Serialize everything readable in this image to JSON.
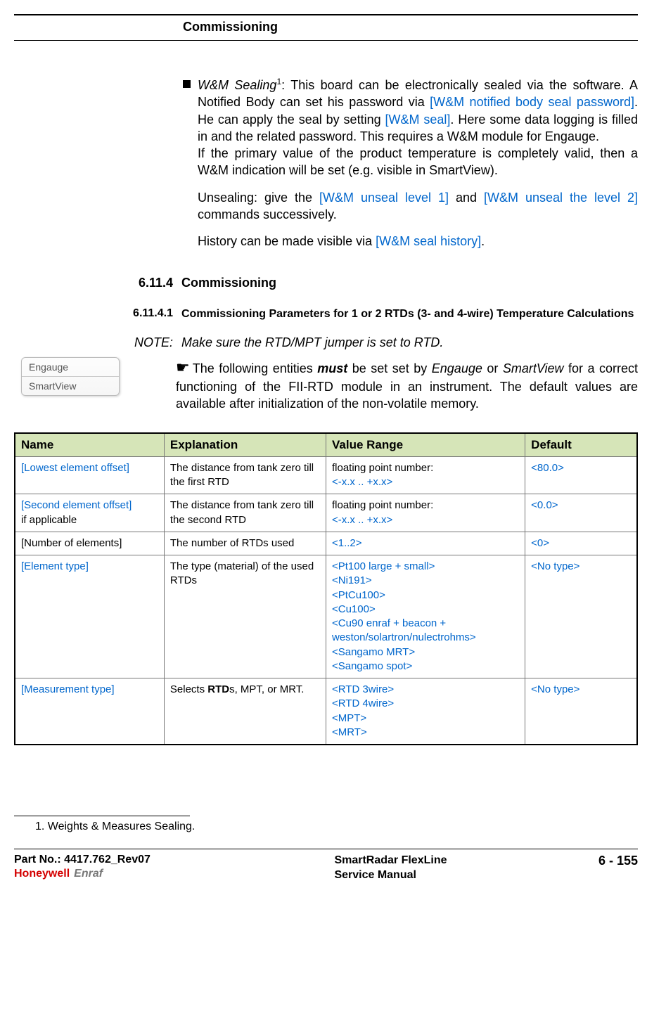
{
  "header": {
    "title": "Commissioning"
  },
  "bullet": {
    "lead_italic": "W&M Sealing",
    "sup": "1",
    "text1": ": This board can be electronically sealed via the software. A Notified Body can set his password via ",
    "link1": "[W&M notified body seal password]",
    "text2": ". He can apply the seal by setting ",
    "link2": "[W&M seal]",
    "text3": ". Here some data logging is filled in and the related password. This requires a W&M module for Engauge.",
    "para2": "If the primary value of the product temperature is completely valid, then a W&M indication will be set (e.g. visible in SmartView).",
    "para3a": "Unsealing: give the ",
    "link3": "[W&M unseal level 1]",
    "para3b": " and ",
    "link4": "[W&M unseal the level 2]",
    "para3c": " commands successively.",
    "para4a": "History can be made visible via ",
    "link5": "[W&M seal history]",
    "para4b": "."
  },
  "section": {
    "num": "6.11.4",
    "title": "Commissioning"
  },
  "subsection": {
    "num": "6.11.4.1",
    "title": "Commissioning Parameters for 1 or 2 RTDs (3- and 4-wire) Temperature Calculations"
  },
  "note": {
    "label": "NOTE:",
    "text": "Make sure the RTD/MPT jumper is set to RTD."
  },
  "badge": {
    "line1": "Engauge",
    "line2": "SmartView"
  },
  "pointer": {
    "text_a": "The following entities ",
    "bold1": "must",
    "text_b": " be set set by ",
    "ital1": "Engauge",
    "text_c": " or ",
    "ital2": "SmartView",
    "text_d": " for a correct functioning of the FII-RTD module in an instrument. The default values are available after initialization of the non-volatile memory."
  },
  "table": {
    "headers": {
      "name": "Name",
      "expl": "Explanation",
      "range": "Value Range",
      "def": "Default"
    },
    "row1": {
      "name": "[Lowest element offset]",
      "expl": "The distance from tank zero till the first RTD",
      "range_a": "floating point number:",
      "range_b": "<-x.x .. +x.x>",
      "def": "<80.0>"
    },
    "row2": {
      "name_a": "[Second element offset]",
      "name_b": "if applicable",
      "expl": "The distance from tank zero till the second RTD",
      "range_a": "floating point number:",
      "range_b": "<-x.x .. +x.x>",
      "def": "<0.0>"
    },
    "row3": {
      "name": "[Number of elements]",
      "expl": "The number of RTDs used",
      "range": "<1..2>",
      "def": "<0>"
    },
    "row4": {
      "name": "[Element type]",
      "expl": "The type (material) of the used RTDs",
      "r1": "<Pt100 large + small>",
      "r2": "<Ni191>",
      "r3": "<PtCu100>",
      "r4": "<Cu100>",
      "r5": "<Cu90 enraf + beacon + weston/solartron/nulectrohms>",
      "r6": "<Sangamo MRT>",
      "r7": "<Sangamo spot>",
      "def": "<No type>"
    },
    "row5": {
      "name": "[Measurement type]",
      "expl_a": "Selects ",
      "expl_bold": "RTD",
      "expl_b": "s, MPT, or MRT.",
      "r1": "<RTD 3wire>",
      "r2": "<RTD 4wire>",
      "r3": "<MPT>",
      "r4": "<MRT>",
      "def": "<No type>"
    }
  },
  "footnote": "1. Weights & Measures Sealing.",
  "footer": {
    "part": "Part No.: 4417.762_Rev07",
    "logo1": "Honeywell",
    "logo2": "Enraf",
    "center1": "SmartRadar FlexLine",
    "center2": "Service Manual",
    "right": "6 - 155"
  }
}
